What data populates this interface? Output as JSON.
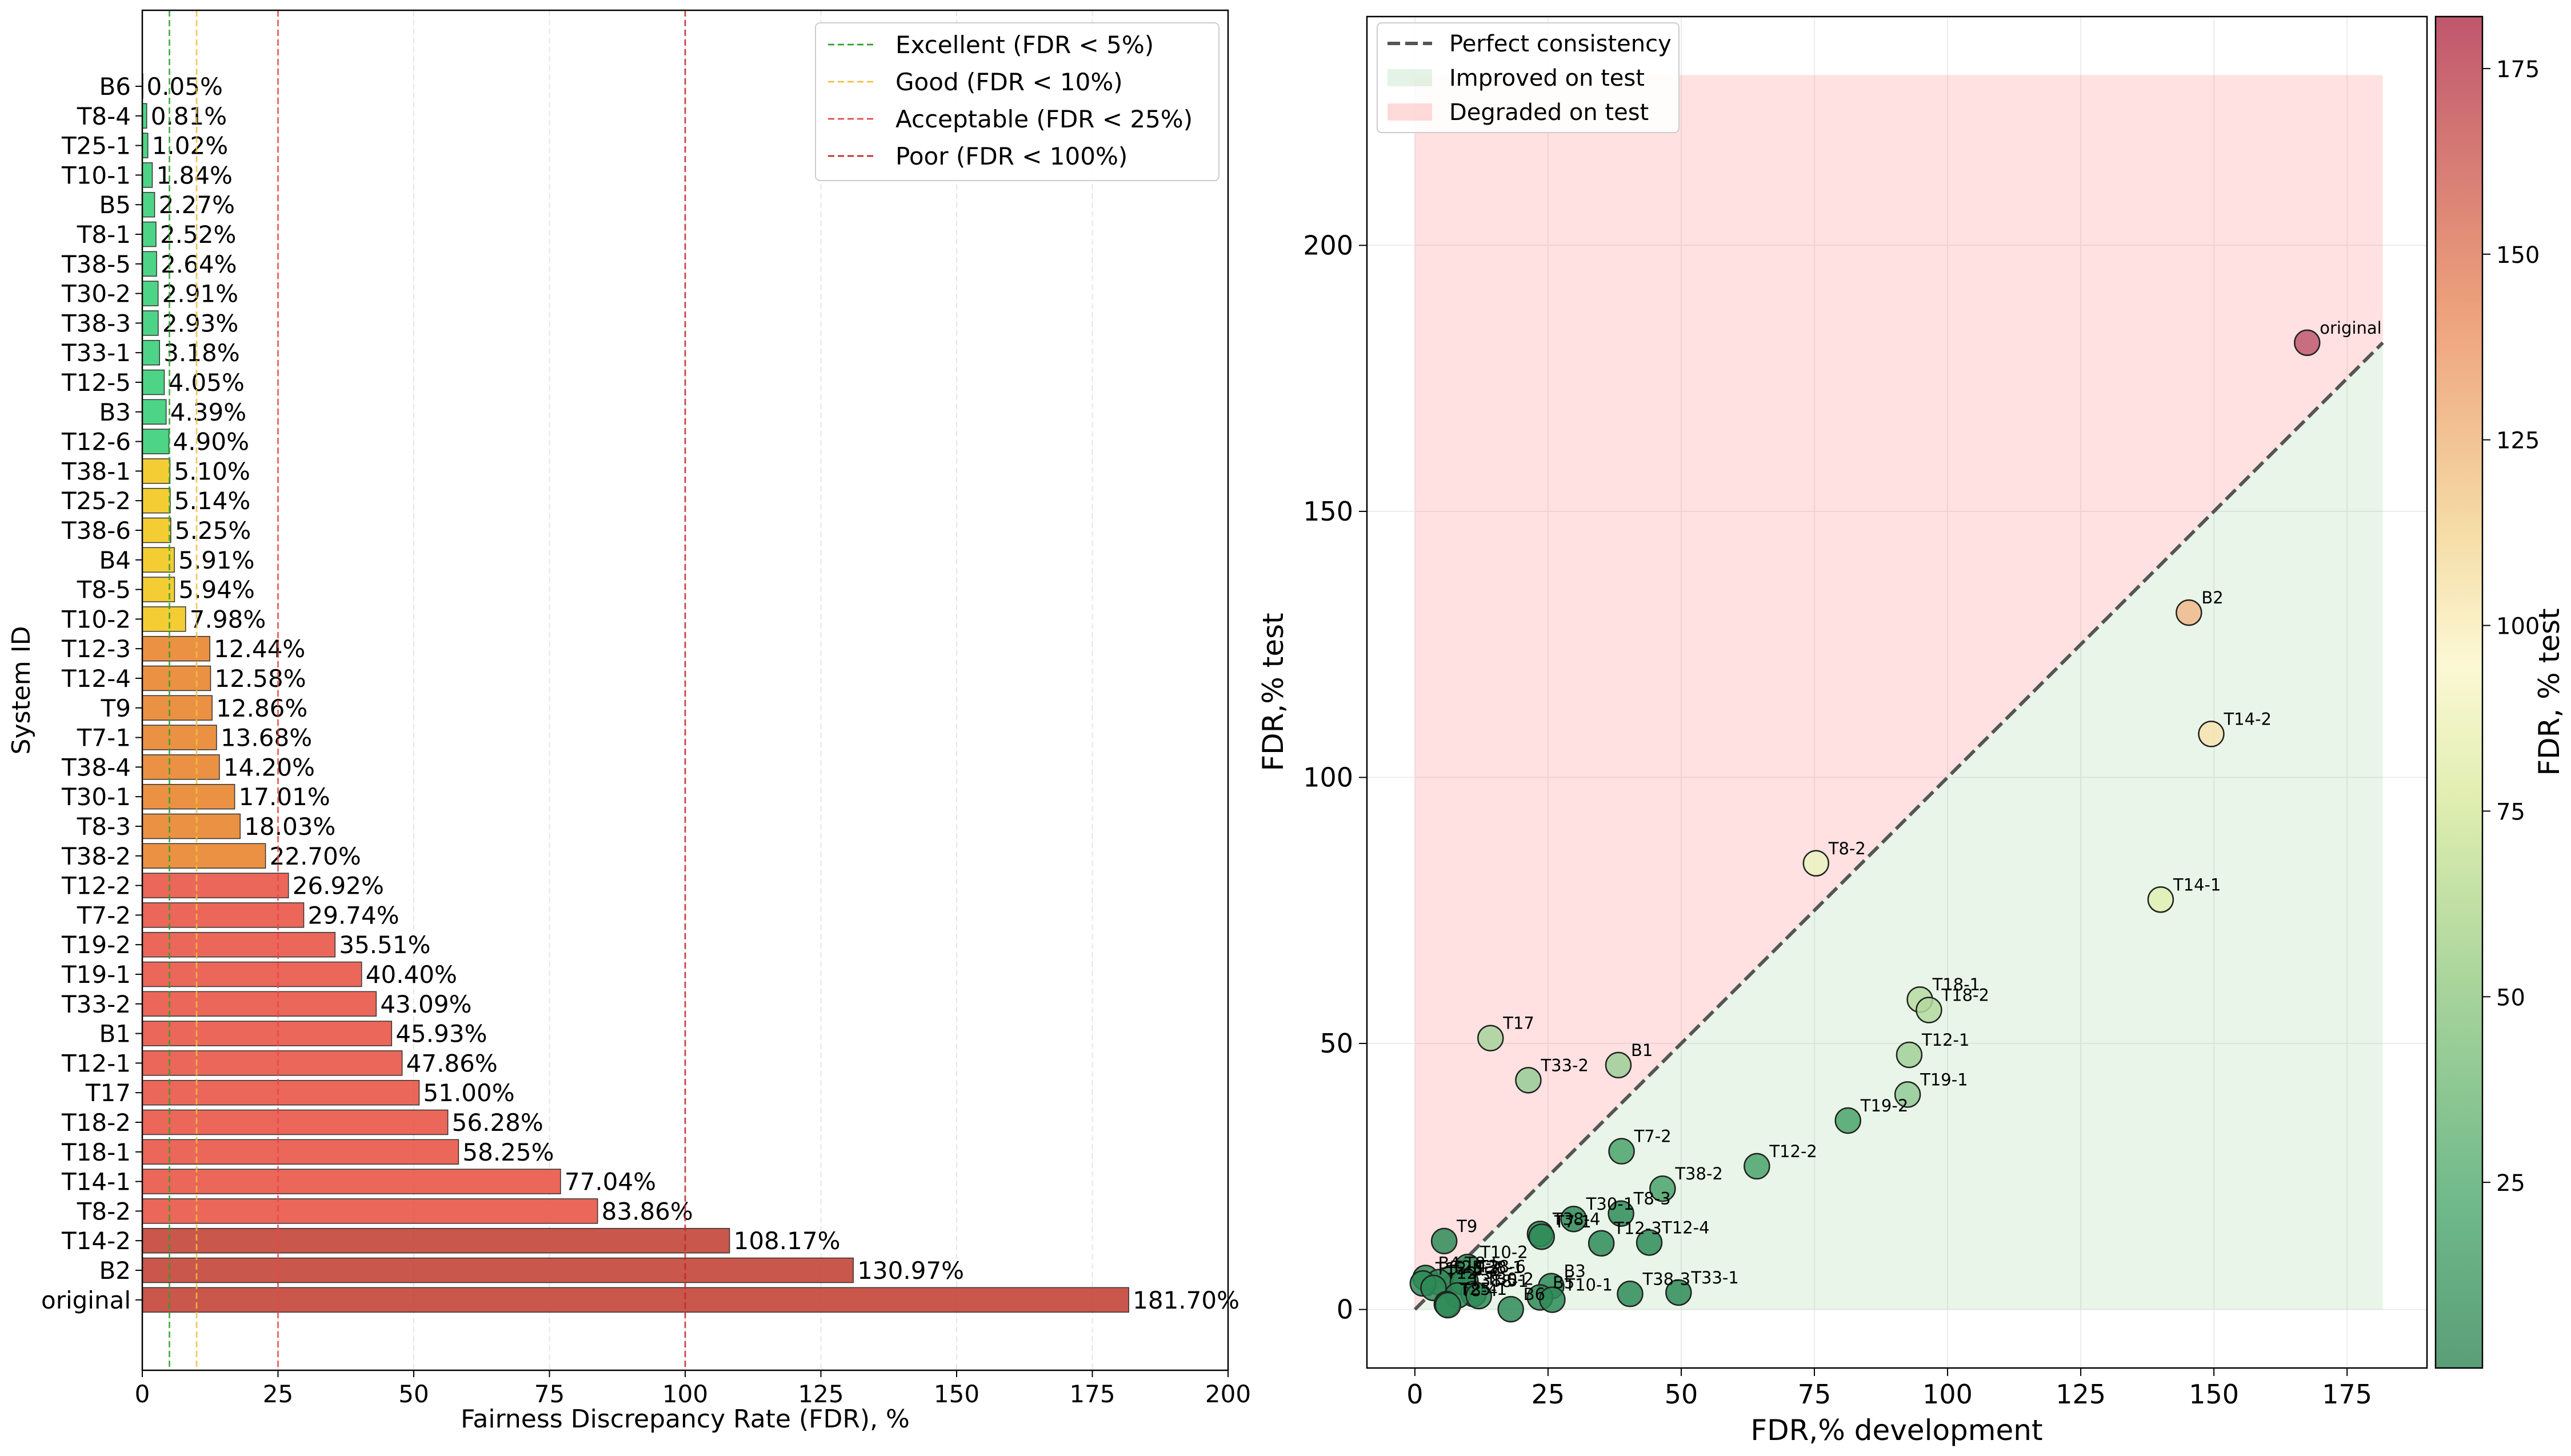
{
  "chart_data": [
    {
      "type": "bar",
      "orientation": "horizontal",
      "title": "",
      "xlabel": "Fairness Discrepancy Rate (FDR), %",
      "ylabel": "System ID",
      "xlim": [
        0,
        200
      ],
      "xticks": [
        0,
        25,
        50,
        75,
        100,
        125,
        150,
        175,
        200
      ],
      "grid": true,
      "legend_position": "top-right",
      "categories": [
        "B6",
        "T8-4",
        "T25-1",
        "T10-1",
        "B5",
        "T8-1",
        "T38-5",
        "T30-2",
        "T38-3",
        "T33-1",
        "T12-5",
        "B3",
        "T12-6",
        "T38-1",
        "T25-2",
        "T38-6",
        "B4",
        "T8-5",
        "T10-2",
        "T12-3",
        "T12-4",
        "T9",
        "T7-1",
        "T38-4",
        "T30-1",
        "T8-3",
        "T38-2",
        "T12-2",
        "T7-2",
        "T19-2",
        "T19-1",
        "T33-2",
        "B1",
        "T12-1",
        "T17",
        "T18-2",
        "T18-1",
        "T14-1",
        "T8-2",
        "T14-2",
        "B2",
        "original"
      ],
      "values": [
        0.05,
        0.81,
        1.02,
        1.84,
        2.27,
        2.52,
        2.64,
        2.91,
        2.93,
        3.18,
        4.05,
        4.39,
        4.9,
        5.1,
        5.14,
        5.25,
        5.91,
        5.94,
        7.98,
        12.44,
        12.58,
        12.86,
        13.68,
        14.2,
        17.01,
        18.03,
        22.7,
        26.92,
        29.74,
        35.51,
        40.4,
        43.09,
        45.93,
        47.86,
        51.0,
        56.28,
        58.25,
        77.04,
        83.86,
        108.17,
        130.97,
        181.7
      ],
      "value_labels": [
        "0.05%",
        "0.81%",
        "1.02%",
        "1.84%",
        "2.27%",
        "2.52%",
        "2.64%",
        "2.91%",
        "2.93%",
        "3.18%",
        "4.05%",
        "4.39%",
        "4.90%",
        "5.10%",
        "5.14%",
        "5.25%",
        "5.91%",
        "5.94%",
        "7.98%",
        "12.44%",
        "12.58%",
        "12.86%",
        "13.68%",
        "14.20%",
        "17.01%",
        "18.03%",
        "22.70%",
        "26.92%",
        "29.74%",
        "35.51%",
        "40.40%",
        "43.09%",
        "45.93%",
        "47.86%",
        "51.00%",
        "56.28%",
        "58.25%",
        "77.04%",
        "83.86%",
        "108.17%",
        "130.97%",
        "181.70%"
      ],
      "bar_colors": {
        "excellent": "#2ecc71",
        "good": "#f1c40f",
        "acceptable": "#e67e22",
        "poor": "#e74c3c",
        "very_poor": "#c0392b"
      },
      "thresholds": [
        {
          "value": 5,
          "label": "Excellent (FDR < 5%)",
          "color": "#2ca02c"
        },
        {
          "value": 10,
          "label": "Good (FDR < 10%)",
          "color": "#f0c040"
        },
        {
          "value": 25,
          "label": "Acceptable (FDR < 25%)",
          "color": "#e8474a"
        },
        {
          "value": 100,
          "label": "Poor (FDR < 100%)",
          "color": "#c0272d"
        }
      ]
    },
    {
      "type": "scatter",
      "title": "",
      "xlabel": "FDR,% development",
      "ylabel": "FDR,% test",
      "xlim": [
        -9,
        190
      ],
      "ylim": [
        -11,
        243
      ],
      "xticks": [
        0,
        25,
        50,
        75,
        100,
        125,
        150,
        175
      ],
      "yticks": [
        0,
        50,
        100,
        150,
        200
      ],
      "grid": true,
      "legend_position": "top-left",
      "legend": [
        "Perfect consistency",
        "Improved on test",
        "Degraded on test"
      ],
      "diagonal_max": 181.7,
      "shaded_region_max_y": 232,
      "colorbar": {
        "label": "FDR, % test",
        "min": 0,
        "max": 182,
        "ticks": [
          25,
          50,
          75,
          100,
          125,
          150,
          175
        ]
      },
      "points": [
        {
          "label": "original",
          "x": 167.5,
          "y": 181.7
        },
        {
          "label": "B2",
          "x": 145.3,
          "y": 130.97
        },
        {
          "label": "T14-2",
          "x": 149.5,
          "y": 108.17
        },
        {
          "label": "T8-2",
          "x": 75.3,
          "y": 83.86
        },
        {
          "label": "T14-1",
          "x": 140.0,
          "y": 77.04
        },
        {
          "label": "T18-1",
          "x": 94.8,
          "y": 58.25
        },
        {
          "label": "T18-2",
          "x": 96.5,
          "y": 56.28
        },
        {
          "label": "T17",
          "x": 14.2,
          "y": 51.0
        },
        {
          "label": "T12-1",
          "x": 92.8,
          "y": 47.86
        },
        {
          "label": "B1",
          "x": 38.2,
          "y": 45.93
        },
        {
          "label": "T33-2",
          "x": 21.3,
          "y": 43.09
        },
        {
          "label": "T19-1",
          "x": 92.5,
          "y": 40.4
        },
        {
          "label": "T19-2",
          "x": 81.3,
          "y": 35.51
        },
        {
          "label": "T7-2",
          "x": 38.8,
          "y": 29.74
        },
        {
          "label": "T12-2",
          "x": 64.2,
          "y": 26.92
        },
        {
          "label": "T38-2",
          "x": 46.5,
          "y": 22.7
        },
        {
          "label": "T8-3",
          "x": 38.7,
          "y": 18.03
        },
        {
          "label": "T30-1",
          "x": 29.8,
          "y": 17.01
        },
        {
          "label": "T38-4",
          "x": 23.5,
          "y": 14.2
        },
        {
          "label": "T7-1",
          "x": 23.8,
          "y": 13.68
        },
        {
          "label": "T9",
          "x": 5.5,
          "y": 12.86
        },
        {
          "label": "T12-4",
          "x": 44.0,
          "y": 12.58
        },
        {
          "label": "T12-3",
          "x": 35.0,
          "y": 12.44
        },
        {
          "label": "T10-2",
          "x": 9.9,
          "y": 7.98
        },
        {
          "label": "T8-5",
          "x": 7.0,
          "y": 5.94
        },
        {
          "label": "B4",
          "x": 2.0,
          "y": 5.91
        },
        {
          "label": "T38-6",
          "x": 9.5,
          "y": 5.25
        },
        {
          "label": "T25-2",
          "x": 4.5,
          "y": 5.14
        },
        {
          "label": "T38-1",
          "x": 9.0,
          "y": 5.1
        },
        {
          "label": "T12-6",
          "x": 1.5,
          "y": 4.9
        },
        {
          "label": "B3",
          "x": 25.6,
          "y": 4.39
        },
        {
          "label": "T12-5",
          "x": 3.5,
          "y": 4.05
        },
        {
          "label": "T33-1",
          "x": 49.5,
          "y": 3.18
        },
        {
          "label": "T38-3",
          "x": 40.4,
          "y": 2.93
        },
        {
          "label": "T30-2",
          "x": 11.0,
          "y": 2.91
        },
        {
          "label": "T38-5",
          "x": 8.0,
          "y": 2.64
        },
        {
          "label": "T8-1",
          "x": 12.0,
          "y": 2.52
        },
        {
          "label": "B5",
          "x": 23.5,
          "y": 2.27
        },
        {
          "label": "T10-1",
          "x": 25.8,
          "y": 1.84
        },
        {
          "label": "T25-1",
          "x": 6.0,
          "y": 1.02
        },
        {
          "label": "T8-4",
          "x": 6.2,
          "y": 0.81
        },
        {
          "label": "B6",
          "x": 18.0,
          "y": 0.05
        }
      ]
    }
  ]
}
